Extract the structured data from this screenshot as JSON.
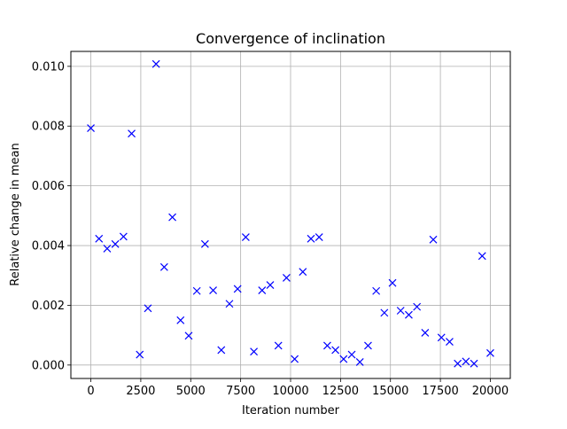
{
  "chart_data": {
    "type": "scatter",
    "title": "Convergence of inclination",
    "xlabel": "Iteration number",
    "ylabel": "Relative change in mean",
    "xlim": [
      -1000,
      21000
    ],
    "ylim": [
      -0.00045,
      0.0105
    ],
    "xticks": [
      0,
      2500,
      5000,
      7500,
      10000,
      12500,
      15000,
      17500,
      20000
    ],
    "xtick_labels": [
      "0",
      "2500",
      "5000",
      "7500",
      "10000",
      "12500",
      "15000",
      "17500",
      "20000"
    ],
    "yticks": [
      0.0,
      0.002,
      0.004,
      0.006,
      0.008,
      0.01
    ],
    "ytick_labels": [
      "0.000",
      "0.002",
      "0.004",
      "0.006",
      "0.008",
      "0.010"
    ],
    "grid": true,
    "marker": "x",
    "color": "#0000ff",
    "series": [
      {
        "x": [
          0,
          408,
          816,
          1224,
          1633,
          2041,
          2449,
          2857,
          3265,
          3673,
          4082,
          4490,
          4898,
          5306,
          5714,
          6122,
          6531,
          6939,
          7347,
          7755,
          8163,
          8571,
          8980,
          9388,
          9796,
          10204,
          10612,
          11020,
          11429,
          11837,
          12245,
          12653,
          13061,
          13469,
          13878,
          14286,
          14694,
          15102,
          15510,
          15918,
          16327,
          16735,
          17143,
          17551,
          17959,
          18367,
          18776,
          19184,
          19592,
          20000
        ],
        "y": [
          0.00793,
          0.00423,
          0.0039,
          0.00405,
          0.0043,
          0.00775,
          0.00035,
          0.0019,
          0.01008,
          0.00328,
          0.00495,
          0.0015,
          0.00098,
          0.00248,
          0.00405,
          0.0025,
          0.0005,
          0.00205,
          0.00255,
          0.00428,
          0.00045,
          0.0025,
          0.00268,
          0.00065,
          0.00292,
          0.0002,
          0.00312,
          0.00423,
          0.00428,
          0.00065,
          0.0005,
          0.0002,
          0.00035,
          0.0001,
          0.00065,
          0.00248,
          0.00175,
          0.00275,
          0.00182,
          0.00168,
          0.00195,
          0.00108,
          0.0042,
          0.00092,
          0.00078,
          5e-05,
          0.00012,
          5e-05,
          0.00365,
          0.0004
        ]
      }
    ]
  }
}
